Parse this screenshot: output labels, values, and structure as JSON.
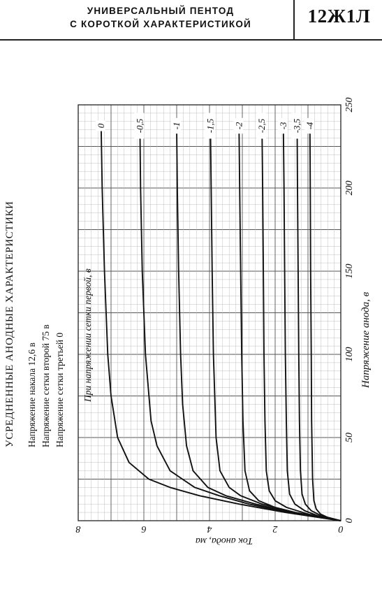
{
  "header": {
    "title_line1": "УНИВЕРСАЛЬНЫЙ ПЕНТОД",
    "title_line2": "С КОРОТКОЙ ХАРАКТЕРИСТИКОЙ",
    "tube_code": "12Ж1Л"
  },
  "notes": {
    "heading": "УСРЕДНЕННЫЕ АНОДНЫЕ ХАРАКТЕРИСТИКИ",
    "line1": "Напряжение накала 12,6 в",
    "line2": "Напряжение сетки второй 75 в",
    "line3": "Напряжение сетки третьей 0"
  },
  "chart_data": {
    "type": "line",
    "title": "УСРЕДНЕННЫЕ АНОДНЫЕ ХАРАКТЕРИСТИКИ",
    "xlabel": "Напряжение анода, в",
    "ylabel": "Ток анода, ма",
    "xlim": [
      0,
      250
    ],
    "ylim": [
      0,
      8
    ],
    "x_ticks": [
      0,
      50,
      100,
      150,
      200,
      250
    ],
    "x_tick_labels": [
      "0",
      "50",
      "100",
      "150",
      "200",
      "250"
    ],
    "y_ticks": [
      0,
      2,
      4,
      6,
      8
    ],
    "y_tick_labels": [
      "0",
      "2",
      "4",
      "6",
      "8"
    ],
    "grid": true,
    "orientation": "rotated 90° counter-clockwise (anode voltage axis runs upward, current axis runs leftward)",
    "series_caption": "При напряжении сетки первой, в",
    "series": [
      {
        "name": "0",
        "points": [
          [
            0,
            0
          ],
          [
            5,
            1.7
          ],
          [
            10,
            3.1
          ],
          [
            15,
            4.3
          ],
          [
            20,
            5.2
          ],
          [
            25,
            5.85
          ],
          [
            35,
            6.45
          ],
          [
            50,
            6.8
          ],
          [
            75,
            7.0
          ],
          [
            100,
            7.1
          ],
          [
            150,
            7.2
          ],
          [
            200,
            7.27
          ],
          [
            235,
            7.3
          ]
        ]
      },
      {
        "name": "-0,5",
        "points": [
          [
            0,
            0
          ],
          [
            5,
            1.6
          ],
          [
            10,
            2.8
          ],
          [
            15,
            3.7
          ],
          [
            20,
            4.45
          ],
          [
            30,
            5.2
          ],
          [
            45,
            5.6
          ],
          [
            60,
            5.78
          ],
          [
            100,
            5.95
          ],
          [
            150,
            6.05
          ],
          [
            200,
            6.1
          ],
          [
            235,
            6.12
          ]
        ]
      },
      {
        "name": "-1",
        "points": [
          [
            0,
            0
          ],
          [
            5,
            1.5
          ],
          [
            10,
            2.6
          ],
          [
            15,
            3.5
          ],
          [
            20,
            4.05
          ],
          [
            30,
            4.5
          ],
          [
            45,
            4.7
          ],
          [
            70,
            4.82
          ],
          [
            100,
            4.88
          ],
          [
            150,
            4.94
          ],
          [
            200,
            4.98
          ],
          [
            235,
            5.0
          ]
        ]
      },
      {
        "name": "-1,5",
        "points": [
          [
            0,
            0
          ],
          [
            5,
            1.4
          ],
          [
            10,
            2.4
          ],
          [
            15,
            3.05
          ],
          [
            20,
            3.4
          ],
          [
            30,
            3.68
          ],
          [
            50,
            3.8
          ],
          [
            100,
            3.88
          ],
          [
            150,
            3.92
          ],
          [
            200,
            3.95
          ],
          [
            235,
            3.97
          ]
        ]
      },
      {
        "name": "-2",
        "points": [
          [
            0,
            0
          ],
          [
            4,
            1.2
          ],
          [
            8,
            2.0
          ],
          [
            12,
            2.5
          ],
          [
            18,
            2.78
          ],
          [
            30,
            2.92
          ],
          [
            60,
            2.98
          ],
          [
            100,
            3.02
          ],
          [
            150,
            3.05
          ],
          [
            200,
            3.08
          ],
          [
            235,
            3.1
          ]
        ]
      },
      {
        "name": "-2,5",
        "points": [
          [
            0,
            0
          ],
          [
            4,
            1.0
          ],
          [
            8,
            1.65
          ],
          [
            12,
            2.0
          ],
          [
            18,
            2.18
          ],
          [
            30,
            2.27
          ],
          [
            60,
            2.31
          ],
          [
            100,
            2.34
          ],
          [
            150,
            2.36
          ],
          [
            200,
            2.38
          ],
          [
            235,
            2.4
          ]
        ]
      },
      {
        "name": "-3",
        "points": [
          [
            0,
            0
          ],
          [
            3,
            0.7
          ],
          [
            6,
            1.1
          ],
          [
            10,
            1.4
          ],
          [
            16,
            1.56
          ],
          [
            30,
            1.63
          ],
          [
            60,
            1.66
          ],
          [
            100,
            1.69
          ],
          [
            150,
            1.71
          ],
          [
            200,
            1.73
          ],
          [
            235,
            1.75
          ]
        ]
      },
      {
        "name": "-3,5",
        "points": [
          [
            0,
            0
          ],
          [
            3,
            0.6
          ],
          [
            6,
            0.9
          ],
          [
            10,
            1.08
          ],
          [
            16,
            1.18
          ],
          [
            30,
            1.23
          ],
          [
            60,
            1.26
          ],
          [
            100,
            1.28
          ],
          [
            150,
            1.3
          ],
          [
            200,
            1.32
          ],
          [
            235,
            1.33
          ]
        ]
      },
      {
        "name": "-4",
        "points": [
          [
            0,
            0
          ],
          [
            2,
            0.4
          ],
          [
            4,
            0.62
          ],
          [
            7,
            0.75
          ],
          [
            12,
            0.82
          ],
          [
            25,
            0.86
          ],
          [
            60,
            0.89
          ],
          [
            100,
            0.9
          ],
          [
            150,
            0.92
          ],
          [
            200,
            0.93
          ],
          [
            235,
            0.94
          ]
        ]
      }
    ]
  },
  "colors": {
    "background": "#ffffff",
    "grid_minor": "#b8b8b8",
    "grid_major": "#555555",
    "curve": "#111111",
    "text": "#111111"
  }
}
